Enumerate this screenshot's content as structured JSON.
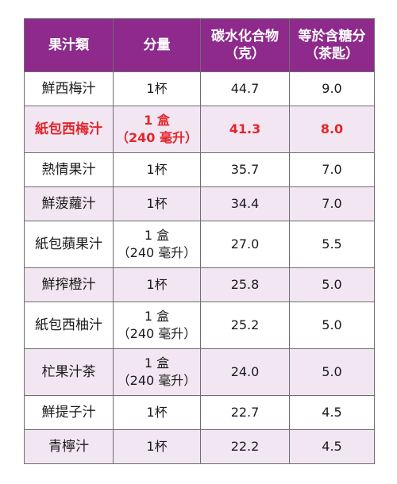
{
  "table": {
    "headers": {
      "juice": "果汁類",
      "amount": "分量",
      "carb_line1": "碳水化合物",
      "carb_line2": "（克）",
      "sugar_line1": "等於含糖分",
      "sugar_line2": "（茶匙）"
    },
    "rows": [
      {
        "name": "鮮西梅汁",
        "amount1": "1杯",
        "amount2": "",
        "carb": "44.7",
        "sugar": "9.0"
      },
      {
        "name": "紙包西梅汁",
        "amount1": "1 盒",
        "amount2": "（240 毫升）",
        "carb": "41.3",
        "sugar": "8.0"
      },
      {
        "name": "熱情果汁",
        "amount1": "1杯",
        "amount2": "",
        "carb": "35.7",
        "sugar": "7.0"
      },
      {
        "name": "鮮菠蘿汁",
        "amount1": "1杯",
        "amount2": "",
        "carb": "34.4",
        "sugar": "7.0"
      },
      {
        "name": "紙包蘋果汁",
        "amount1": "1 盒",
        "amount2": "（240 毫升）",
        "carb": "27.0",
        "sugar": "5.5"
      },
      {
        "name": "鮮搾橙汁",
        "amount1": "1杯",
        "amount2": "",
        "carb": "25.8",
        "sugar": "5.0"
      },
      {
        "name": "紙包西柚汁",
        "amount1": "1 盒",
        "amount2": "（240 毫升）",
        "carb": "25.2",
        "sugar": "5.0"
      },
      {
        "name": "杧果汁茶",
        "amount1": "1 盒",
        "amount2": "（240 毫升）",
        "carb": "24.0",
        "sugar": "5.0"
      },
      {
        "name": "鮮提子汁",
        "amount1": "1杯",
        "amount2": "",
        "carb": "22.7",
        "sugar": "4.5"
      },
      {
        "name": "青檸汁",
        "amount1": "1杯",
        "amount2": "",
        "carb": "22.2",
        "sugar": "4.5"
      }
    ]
  },
  "colors": {
    "header_bg": "#8e2a8c",
    "alt_row_bg": "#f1e6f1",
    "highlight_text": "#e2262b"
  }
}
